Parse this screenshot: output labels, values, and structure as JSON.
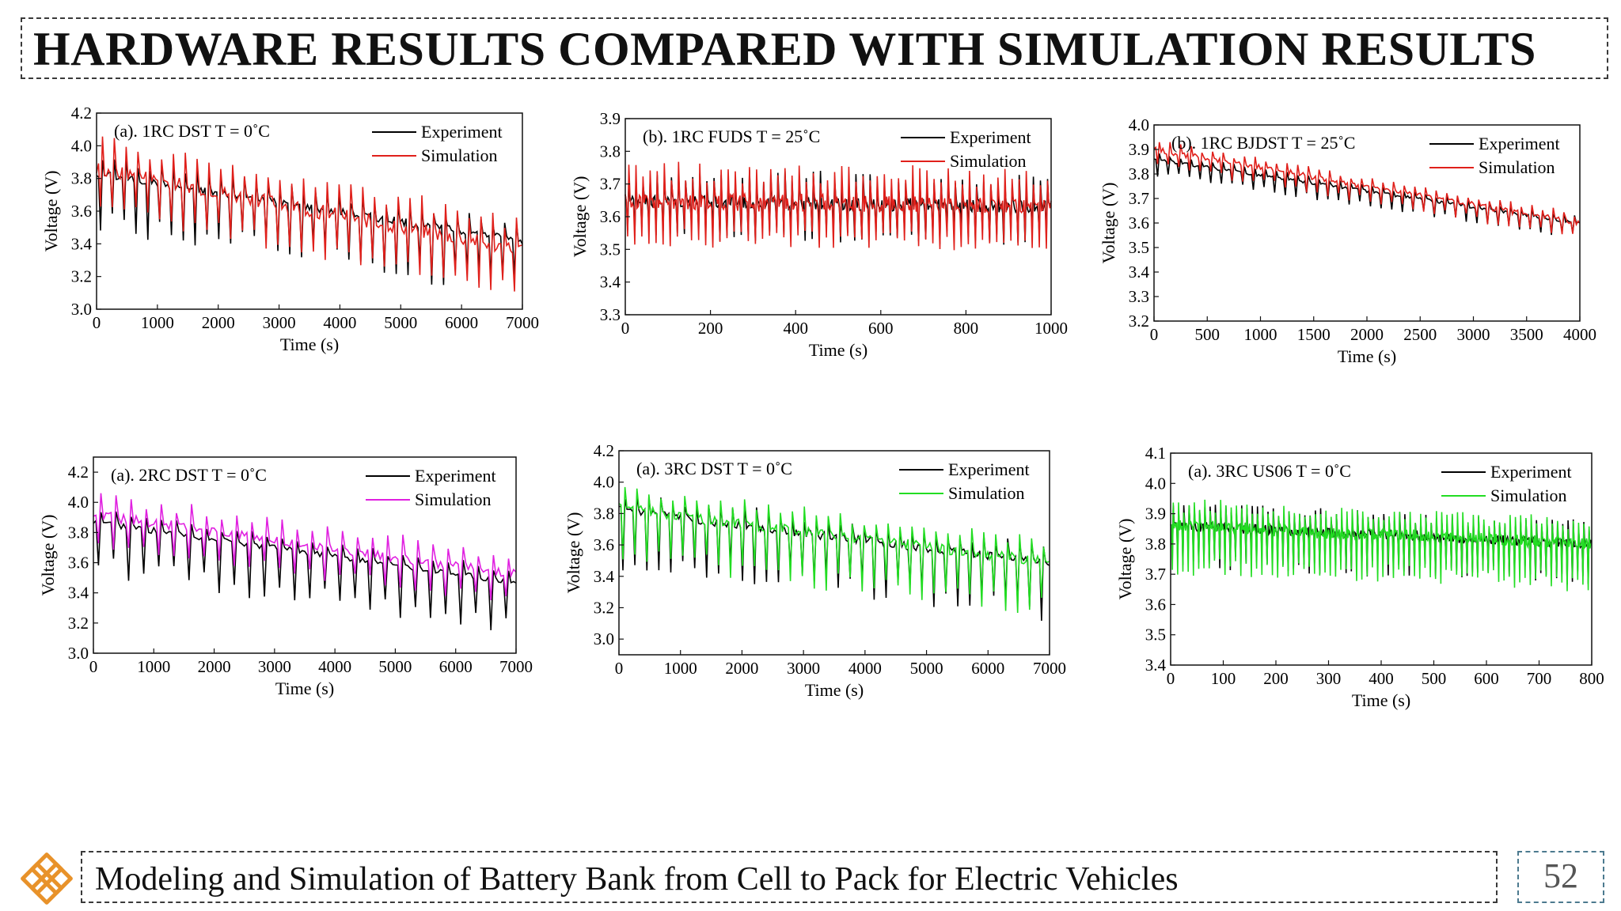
{
  "slide": {
    "title": "HARDWARE RESULTS COMPARED WITH SIMULATION RESULTS",
    "footer": "Modeling and Simulation of Battery Bank from Cell to Pack for Electric Vehicles",
    "page_number": "52",
    "logo_icon": "knot-logo-icon",
    "accent_color": "#e8922a"
  },
  "chart_data": [
    {
      "type": "line",
      "title": "(a). 1RC DST  T = 0˚C",
      "xlabel": "Time (s)",
      "ylabel": "Voltage (V)",
      "xlim": [
        0,
        7000
      ],
      "ylim": [
        3.0,
        4.2
      ],
      "xticks": [
        "0",
        "1000",
        "2000",
        "3000",
        "4000",
        "5000",
        "6000",
        "7000"
      ],
      "yticks": [
        "3.0",
        "3.2",
        "3.4",
        "3.6",
        "3.8",
        "4.0",
        "4.2"
      ],
      "legend_position": "top-right",
      "series": [
        {
          "name": "Experiment",
          "color": "#000000",
          "start": 3.83,
          "end": 3.42,
          "pulse_up": 0.12,
          "pulse_down": 0.36,
          "pulses": 36
        },
        {
          "name": "Simulation",
          "color": "#e0201b",
          "start": 3.86,
          "end": 3.36,
          "pulse_up": 0.22,
          "pulse_down": 0.3,
          "pulses": 36
        }
      ]
    },
    {
      "type": "line",
      "title": "(b). 1RC FUDS  T = 25˚C",
      "xlabel": "Time (s)",
      "ylabel": "Voltage (V)",
      "xlim": [
        0,
        1000
      ],
      "ylim": [
        3.3,
        3.9
      ],
      "xticks": [
        "0",
        "200",
        "400",
        "600",
        "800",
        "1000"
      ],
      "yticks": [
        "3.3",
        "3.4",
        "3.5",
        "3.6",
        "3.7",
        "3.8",
        "3.9"
      ],
      "legend_position": "top-right",
      "series": [
        {
          "name": "Experiment",
          "color": "#000000",
          "start": 3.65,
          "end": 3.63,
          "pulse_up": 0.1,
          "pulse_down": 0.12,
          "pulses": 60
        },
        {
          "name": "Simulation",
          "color": "#e0201b",
          "start": 3.65,
          "end": 3.63,
          "pulse_up": 0.12,
          "pulse_down": 0.14,
          "pulses": 60
        }
      ]
    },
    {
      "type": "line",
      "title": "(b). 1RC BJDST  T = 25˚C",
      "xlabel": "Time (s)",
      "ylabel": "Voltage (V)",
      "xlim": [
        0,
        4000
      ],
      "ylim": [
        3.2,
        4.0
      ],
      "xticks": [
        "0",
        "500",
        "1000",
        "1500",
        "2000",
        "2500",
        "3000",
        "3500",
        "4000"
      ],
      "yticks": [
        "3.2",
        "3.3",
        "3.4",
        "3.5",
        "3.6",
        "3.7",
        "3.8",
        "3.9",
        "4.0"
      ],
      "legend_position": "top-right",
      "series": [
        {
          "name": "Experiment",
          "color": "#000000",
          "start": 3.86,
          "end": 3.6,
          "pulse_up": 0.03,
          "pulse_down": 0.07,
          "pulses": 40
        },
        {
          "name": "Simulation",
          "color": "#e0201b",
          "start": 3.9,
          "end": 3.6,
          "pulse_up": 0.04,
          "pulse_down": 0.07,
          "pulses": 40
        }
      ]
    },
    {
      "type": "line",
      "title": "(a). 2RC DST  T = 0˚C",
      "xlabel": "Time (s)",
      "ylabel": "Voltage (V)",
      "xlim": [
        0,
        7000
      ],
      "ylim": [
        3.0,
        4.3
      ],
      "xticks": [
        "0",
        "1000",
        "2000",
        "3000",
        "4000",
        "5000",
        "6000",
        "7000"
      ],
      "yticks": [
        "3.0",
        "3.2",
        "3.4",
        "3.6",
        "3.8",
        "4.0",
        "4.2"
      ],
      "legend_position": "top-right",
      "series": [
        {
          "name": "Experiment",
          "color": "#000000",
          "start": 3.87,
          "end": 3.47,
          "pulse_up": 0.1,
          "pulse_down": 0.36,
          "pulses": 28
        },
        {
          "name": "Simulation",
          "color": "#e020e0",
          "start": 3.92,
          "end": 3.52,
          "pulse_up": 0.16,
          "pulse_down": 0.22,
          "pulses": 28
        }
      ]
    },
    {
      "type": "line",
      "title": "(a). 3RC DST  T = 0˚C",
      "xlabel": "Time (s)",
      "ylabel": "Voltage (V)",
      "xlim": [
        0,
        7000
      ],
      "ylim": [
        2.9,
        4.2
      ],
      "xticks": [
        "0",
        "1000",
        "2000",
        "3000",
        "4000",
        "5000",
        "6000",
        "7000"
      ],
      "yticks": [
        "3.0",
        "3.2",
        "3.4",
        "3.6",
        "3.8",
        "4.0",
        "4.2"
      ],
      "legend_position": "top-right",
      "series": [
        {
          "name": "Experiment",
          "color": "#000000",
          "start": 3.82,
          "end": 3.48,
          "pulse_up": 0.14,
          "pulse_down": 0.38,
          "pulses": 36
        },
        {
          "name": "Simulation",
          "color": "#22dd22",
          "start": 3.83,
          "end": 3.49,
          "pulse_up": 0.16,
          "pulse_down": 0.36,
          "pulses": 36
        }
      ]
    },
    {
      "type": "line",
      "title": "(a). 3RC US06  T = 0˚C",
      "xlabel": "Time (s)",
      "ylabel": "Voltage (V)",
      "xlim": [
        0,
        800
      ],
      "ylim": [
        3.4,
        4.1
      ],
      "xticks": [
        "0",
        "100",
        "200",
        "300",
        "400",
        "500",
        "600",
        "700",
        "800"
      ],
      "yticks": [
        "3.4",
        "3.5",
        "3.6",
        "3.7",
        "3.8",
        "3.9",
        "4.0",
        "4.1"
      ],
      "legend_position": "top-right",
      "series": [
        {
          "name": "Experiment",
          "color": "#000000",
          "start": 3.86,
          "end": 3.8,
          "pulse_up": 0.08,
          "pulse_down": 0.14,
          "pulses": 80
        },
        {
          "name": "Simulation",
          "color": "#22dd22",
          "start": 3.86,
          "end": 3.8,
          "pulse_up": 0.09,
          "pulse_down": 0.16,
          "pulses": 80
        }
      ]
    }
  ]
}
